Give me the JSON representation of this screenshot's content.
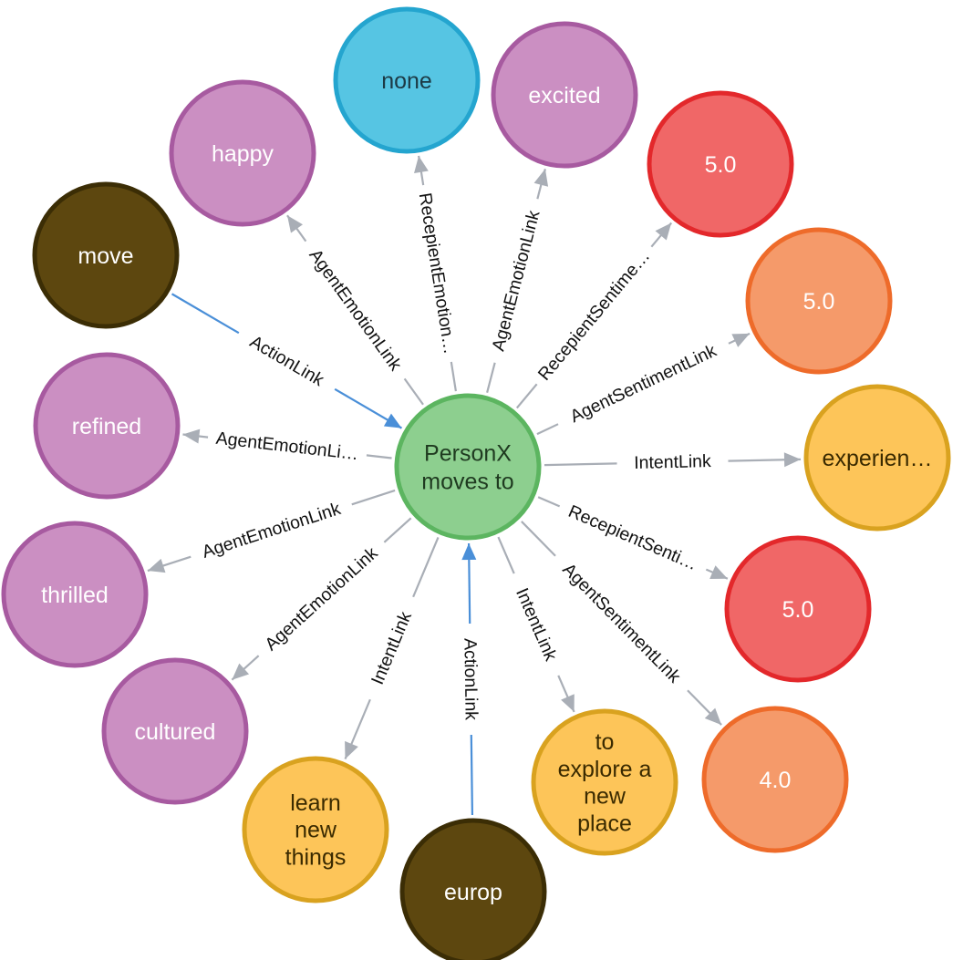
{
  "center": {
    "lines": [
      "PersonX",
      "moves to"
    ],
    "fill": "#8dcf8f",
    "stroke": "#5cb560",
    "text_color": "#1f3a20"
  },
  "palette": {
    "emotion": {
      "fill": "#cb8fc2",
      "stroke": "#a75aa0",
      "text": "#ffffff"
    },
    "none": {
      "fill": "#56c5e3",
      "stroke": "#24a5cf",
      "text": "#1c3a45"
    },
    "sent_red": {
      "fill": "#f06767",
      "stroke": "#e3282b",
      "text": "#ffffff"
    },
    "sent_orange": {
      "fill": "#f59a6a",
      "stroke": "#ee6b2a",
      "text": "#ffffff"
    },
    "intent": {
      "fill": "#fdc559",
      "stroke": "#d9a21f",
      "text": "#3a2a00"
    },
    "action": {
      "fill": "#5d470f",
      "stroke": "#3b2d05",
      "text": "#ffffff"
    },
    "edge_grey": "#a9aeb6",
    "edge_blue": "#4a8fd8"
  },
  "nodes": [
    {
      "id": "none",
      "lines": [
        "none"
      ],
      "style": "none",
      "edge": "RecepientEmotion…",
      "dir": "out"
    },
    {
      "id": "excited",
      "lines": [
        "excited"
      ],
      "style": "emotion",
      "edge": "AgentEmotionLink",
      "dir": "out"
    },
    {
      "id": "sent1",
      "lines": [
        "5.0"
      ],
      "style": "sent_red",
      "edge": "RecepientSentime…",
      "dir": "out"
    },
    {
      "id": "sent2",
      "lines": [
        "5.0"
      ],
      "style": "sent_orange",
      "edge": "AgentSentimentLink",
      "dir": "out"
    },
    {
      "id": "experience",
      "lines": [
        "experien…"
      ],
      "style": "intent",
      "edge": "IntentLink",
      "dir": "out"
    },
    {
      "id": "sent3",
      "lines": [
        "5.0"
      ],
      "style": "sent_red",
      "edge": "RecepientSenti…",
      "dir": "out"
    },
    {
      "id": "sent4",
      "lines": [
        "4.0"
      ],
      "style": "sent_orange",
      "edge": "AgentSentimentLink",
      "dir": "out"
    },
    {
      "id": "explore",
      "lines": [
        "to",
        "explore a",
        "new",
        "place"
      ],
      "style": "intent",
      "edge": "IntentLink",
      "dir": "out"
    },
    {
      "id": "europ",
      "lines": [
        "europ"
      ],
      "style": "action",
      "edge": "ActionLink",
      "dir": "in"
    },
    {
      "id": "learn",
      "lines": [
        "learn",
        "new",
        "things"
      ],
      "style": "intent",
      "edge": "IntentLink",
      "dir": "out"
    },
    {
      "id": "cultured",
      "lines": [
        "cultured"
      ],
      "style": "emotion",
      "edge": "AgentEmotionLink",
      "dir": "out"
    },
    {
      "id": "thrilled",
      "lines": [
        "thrilled"
      ],
      "style": "emotion",
      "edge": "AgentEmotionLink",
      "dir": "out"
    },
    {
      "id": "refined",
      "lines": [
        "refined"
      ],
      "style": "emotion",
      "edge": "AgentEmotionLi…",
      "dir": "out"
    },
    {
      "id": "move",
      "lines": [
        "move"
      ],
      "style": "action",
      "edge": "ActionLink",
      "dir": "in"
    },
    {
      "id": "happy",
      "lines": [
        "happy"
      ],
      "style": "emotion",
      "edge": "AgentEmotionLink",
      "dir": "out"
    }
  ]
}
